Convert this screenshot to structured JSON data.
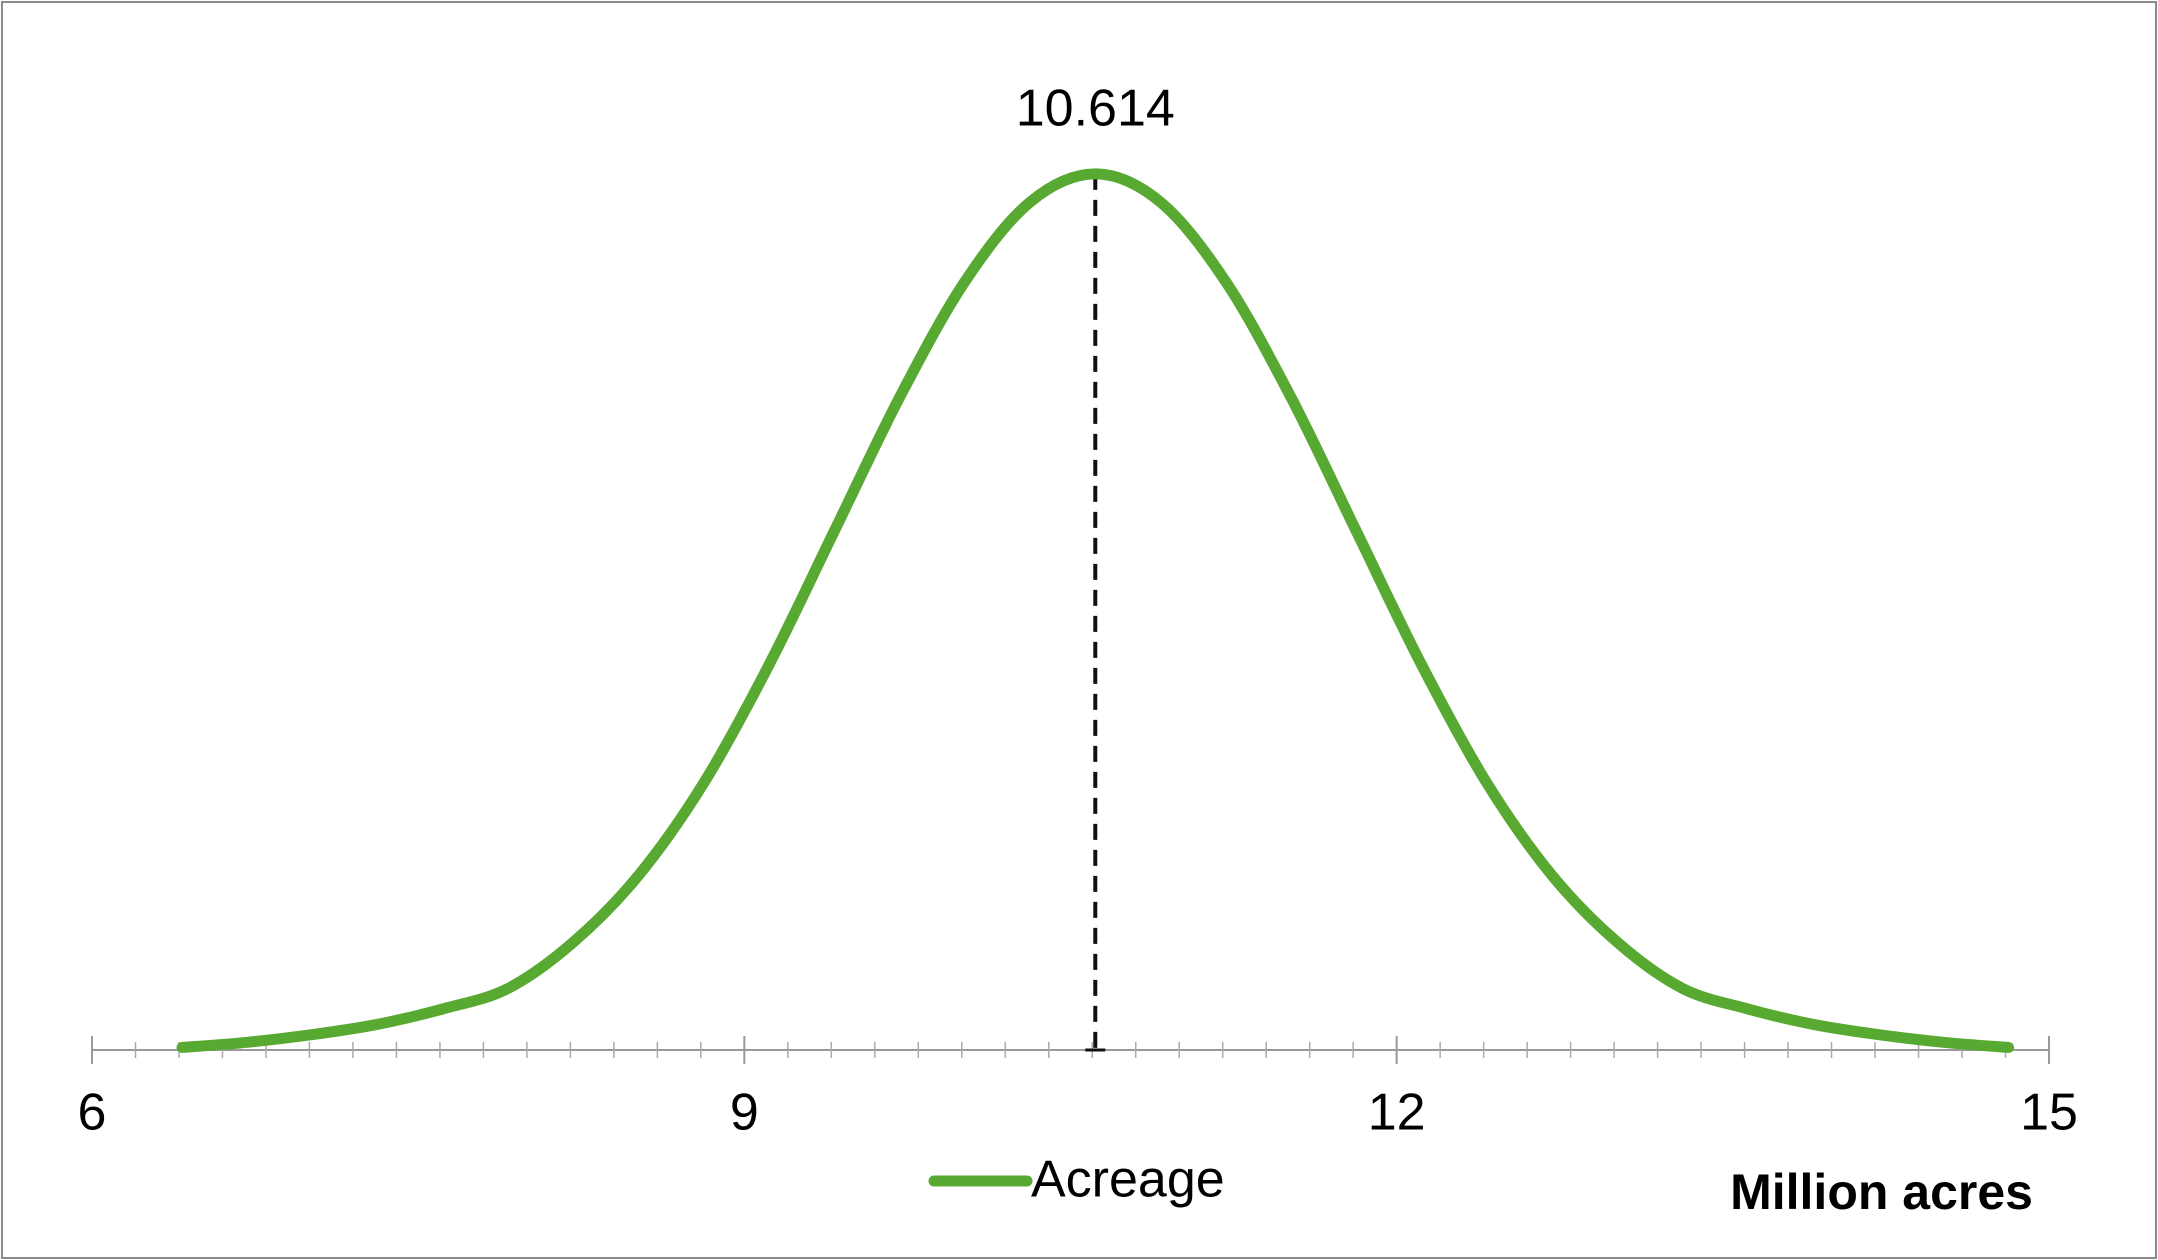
{
  "chart_data": {
    "type": "line",
    "x": [
      6.414,
      6.714,
      7.014,
      7.314,
      7.614,
      7.914,
      8.214,
      8.514,
      8.814,
      9.114,
      9.414,
      9.714,
      10.014,
      10.314,
      10.614,
      10.914,
      11.214,
      11.514,
      11.814,
      12.114,
      12.414,
      12.714,
      13.014,
      13.314,
      13.614,
      13.914,
      14.214,
      14.514,
      14.814
    ],
    "series": [
      {
        "name": "Acreage",
        "color": "#58a931",
        "values": [
          0.001,
          0.003,
          0.006,
          0.01,
          0.016,
          0.024,
          0.042,
          0.068,
          0.104,
          0.15,
          0.202,
          0.254,
          0.299,
          0.33,
          0.341,
          0.33,
          0.299,
          0.254,
          0.202,
          0.15,
          0.104,
          0.068,
          0.042,
          0.024,
          0.016,
          0.01,
          0.006,
          0.003,
          0.001
        ]
      }
    ],
    "xlim": [
      6,
      15
    ],
    "xticks": [
      6,
      9,
      12,
      15
    ],
    "minor_tick_step": 0.2,
    "ylim": [
      0,
      0.36
    ],
    "marker_x": 10.614,
    "xlabel": "Million acres",
    "legend": "bottom"
  }
}
